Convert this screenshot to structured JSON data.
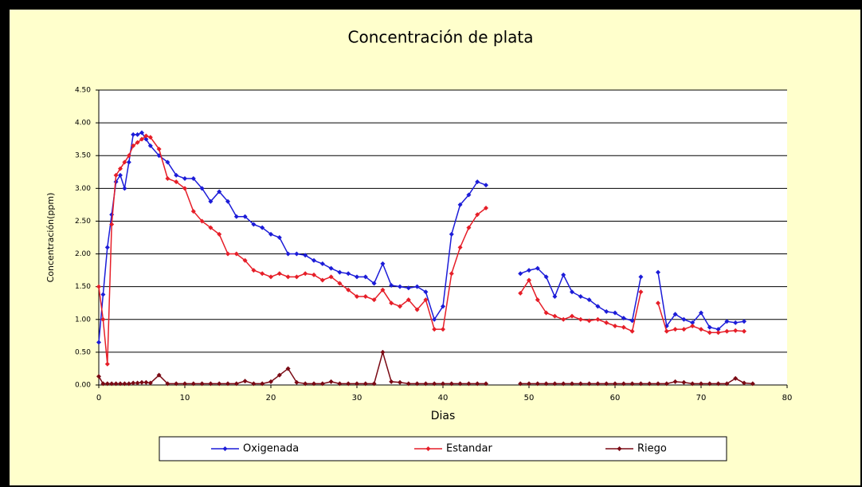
{
  "chart_data": {
    "type": "line",
    "title": "Concentración de  plata",
    "xlabel": "Dias",
    "ylabel": "Concentración(ppm)",
    "x": [
      0,
      0.5,
      1,
      1.5,
      2,
      2.5,
      3,
      3.5,
      4,
      4.5,
      5,
      5.5,
      6,
      7,
      8,
      9,
      10,
      11,
      12,
      13,
      14,
      15,
      16,
      17,
      18,
      19,
      20,
      21,
      22,
      23,
      24,
      25,
      26,
      27,
      28,
      29,
      30,
      31,
      32,
      33,
      34,
      35,
      36,
      37,
      38,
      39,
      40,
      41,
      42,
      43,
      44,
      45,
      46,
      47,
      48,
      49,
      50,
      51,
      52,
      53,
      54,
      55,
      56,
      57,
      58,
      59,
      60,
      61,
      62,
      63,
      64,
      65,
      66,
      67,
      68,
      69,
      70,
      71,
      72,
      73,
      74,
      75,
      76
    ],
    "series": [
      {
        "name": "Oxigenada",
        "color": "#1c1cd8",
        "values": [
          0.65,
          1.38,
          2.1,
          2.6,
          3.1,
          3.2,
          3.0,
          3.4,
          3.82,
          3.82,
          3.85,
          3.75,
          3.65,
          3.5,
          3.4,
          3.2,
          3.15,
          3.15,
          3.0,
          2.8,
          2.95,
          2.8,
          2.57,
          2.57,
          2.45,
          2.4,
          2.3,
          2.25,
          2.0,
          2.0,
          1.98,
          1.9,
          1.85,
          1.78,
          1.72,
          1.7,
          1.65,
          1.65,
          1.55,
          1.85,
          1.52,
          1.5,
          1.48,
          1.5,
          1.42,
          1.0,
          1.2,
          2.3,
          2.75,
          2.9,
          3.1,
          3.05,
          null,
          null,
          null,
          1.7,
          1.75,
          1.78,
          1.65,
          1.35,
          1.68,
          1.42,
          1.35,
          1.3,
          1.2,
          1.12,
          1.1,
          1.02,
          0.98,
          1.65,
          null,
          1.72,
          0.9,
          1.08,
          1.0,
          0.95,
          1.1,
          0.88,
          0.85,
          0.97,
          0.95,
          0.97,
          null
        ]
      },
      {
        "name": "Estandar",
        "color": "#e61e28",
        "values": [
          1.5,
          1.0,
          0.32,
          2.45,
          3.2,
          3.3,
          3.4,
          3.5,
          3.65,
          3.7,
          3.75,
          3.8,
          3.78,
          3.6,
          3.15,
          3.1,
          3.0,
          2.65,
          2.5,
          2.4,
          2.3,
          2.0,
          2.0,
          1.9,
          1.75,
          1.7,
          1.65,
          1.7,
          1.65,
          1.65,
          1.7,
          1.68,
          1.6,
          1.65,
          1.55,
          1.45,
          1.35,
          1.35,
          1.3,
          1.45,
          1.25,
          1.2,
          1.3,
          1.15,
          1.3,
          0.85,
          0.85,
          1.7,
          2.1,
          2.4,
          2.6,
          2.7,
          null,
          null,
          null,
          1.4,
          1.6,
          1.3,
          1.1,
          1.05,
          1.0,
          1.05,
          1.0,
          0.98,
          1.0,
          0.95,
          0.9,
          0.88,
          0.82,
          1.42,
          null,
          1.25,
          0.82,
          0.85,
          0.85,
          0.9,
          0.85,
          0.8,
          0.8,
          0.82,
          0.83,
          0.82,
          null
        ]
      },
      {
        "name": "Riego",
        "color": "#7a0a14",
        "values": [
          0.13,
          0.02,
          0.02,
          0.02,
          0.02,
          0.02,
          0.02,
          0.02,
          0.03,
          0.03,
          0.04,
          0.04,
          0.03,
          0.15,
          0.02,
          0.02,
          0.02,
          0.02,
          0.02,
          0.02,
          0.02,
          0.02,
          0.02,
          0.06,
          0.02,
          0.02,
          0.05,
          0.15,
          0.25,
          0.04,
          0.02,
          0.02,
          0.02,
          0.05,
          0.02,
          0.02,
          0.02,
          0.02,
          0.02,
          0.5,
          0.05,
          0.04,
          0.02,
          0.02,
          0.02,
          0.02,
          0.02,
          0.02,
          0.02,
          0.02,
          0.02,
          0.02,
          null,
          null,
          null,
          0.02,
          0.02,
          0.02,
          0.02,
          0.02,
          0.02,
          0.02,
          0.02,
          0.02,
          0.02,
          0.02,
          0.02,
          0.02,
          0.02,
          0.02,
          0.02,
          0.02,
          0.02,
          0.05,
          0.04,
          0.02,
          0.02,
          0.02,
          0.02,
          0.02,
          0.1,
          0.03,
          0.02
        ]
      }
    ],
    "xlim": [
      0,
      80
    ],
    "xticks": [
      0,
      10,
      20,
      30,
      40,
      50,
      60,
      70,
      80
    ],
    "ylim": [
      0,
      4.5
    ],
    "yticks": [
      {
        "value": 0,
        "label": "0.00"
      },
      {
        "value": 0.5,
        "label": "0.50"
      },
      {
        "value": 1,
        "label": "1.00"
      },
      {
        "value": 1.5,
        "label": "1.50"
      },
      {
        "value": 2,
        "label": "2.00"
      },
      {
        "value": 2.5,
        "label": "2.50"
      },
      {
        "value": 3,
        "label": "3.00"
      },
      {
        "value": 3.5,
        "label": "3.50"
      },
      {
        "value": 4,
        "label": "4.00"
      },
      {
        "value": 4.5,
        "label": "4.50"
      }
    ],
    "grid": true,
    "legend": "bottom"
  }
}
